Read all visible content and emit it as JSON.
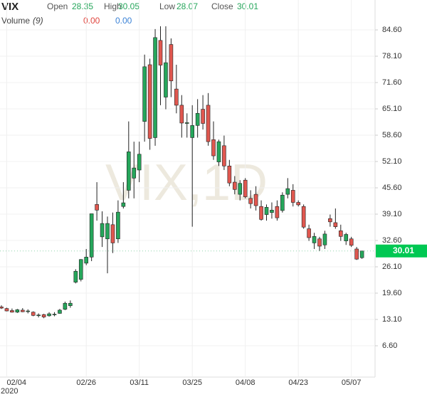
{
  "chart_data": {
    "type": "candlestick",
    "title": "VIX",
    "watermark": "VIX,1D",
    "ohlc_labels": {
      "open": "Open",
      "high": "High",
      "low": "Low",
      "close": "Close"
    },
    "indicator": {
      "name": "Volume",
      "param": "(9)",
      "readings": [
        "0.00",
        "0.00"
      ],
      "reading_colors": [
        "#e0463f",
        "#3b82d6"
      ]
    },
    "year_label": "2020",
    "categories": [
      null,
      "02/04",
      null,
      null,
      null,
      null,
      null,
      null,
      null,
      null,
      null,
      null,
      null,
      null,
      null,
      null,
      "02/26",
      null,
      null,
      null,
      null,
      null,
      null,
      null,
      null,
      null,
      "03/11",
      null,
      null,
      null,
      null,
      null,
      null,
      null,
      null,
      null,
      "03/25",
      null,
      null,
      null,
      null,
      null,
      null,
      null,
      null,
      null,
      "04/08",
      null,
      null,
      null,
      null,
      null,
      null,
      null,
      null,
      null,
      "04/23",
      null,
      null,
      null,
      null,
      null,
      null,
      null,
      null,
      null,
      "05/07",
      null,
      null
    ],
    "open": [
      16.2,
      15.8,
      15.3,
      14.9,
      15.4,
      15.1,
      14.9,
      14.2,
      14.3,
      14.0,
      14.4,
      14.6,
      15.6,
      16.5,
      22.3,
      23.0,
      27.0,
      28.5,
      41.5,
      33.5,
      33.0,
      36.5,
      33.0,
      41.0,
      45.0,
      48.0,
      50.0,
      62.0,
      76.0,
      58.0,
      82.0,
      68.0,
      81.0,
      70.0,
      66.0,
      61.5,
      58.0,
      61.0,
      65.0,
      66.0,
      57.5,
      52.0,
      56.0,
      51.0,
      47.0,
      44.0,
      47.5,
      43.0,
      44.0,
      41.0,
      39.0,
      39.5,
      41.0,
      40.0,
      44.0,
      45.0,
      42.0,
      41.0,
      35.5,
      32.0,
      33.0,
      31.5,
      38.0,
      37.0,
      35.0,
      32.5,
      33.0,
      30.5,
      28.35
    ],
    "high": [
      16.6,
      16.0,
      15.8,
      15.7,
      15.9,
      15.6,
      15.1,
      14.6,
      14.5,
      14.9,
      14.9,
      15.7,
      17.5,
      17.8,
      25.5,
      28.0,
      30.5,
      39.2,
      47.0,
      39.8,
      38.5,
      39.5,
      42.5,
      47.0,
      62.0,
      57.0,
      57.0,
      78.5,
      77.5,
      84.8,
      85.5,
      85.5,
      82.5,
      76.0,
      68.5,
      64.0,
      66.0,
      67.5,
      68.5,
      69.0,
      62.0,
      57.5,
      58.5,
      52.5,
      48.5,
      47.5,
      48.0,
      45.0,
      46.0,
      42.5,
      41.5,
      42.0,
      42.5,
      44.5,
      48.0,
      46.5,
      42.5,
      41.5,
      36.5,
      34.5,
      33.5,
      35.0,
      39.0,
      40.5,
      36.5,
      34.5,
      33.5,
      31.0,
      30.05
    ],
    "low": [
      15.7,
      15.1,
      14.8,
      14.7,
      14.9,
      14.6,
      13.9,
      13.6,
      13.4,
      13.8,
      13.9,
      14.5,
      15.4,
      16.0,
      22.0,
      22.5,
      26.5,
      27.5,
      37.5,
      31.0,
      24.5,
      29.5,
      32.0,
      40.5,
      43.0,
      43.0,
      47.0,
      57.0,
      55.0,
      56.0,
      66.0,
      65.0,
      68.0,
      64.0,
      58.0,
      58.0,
      36.0,
      58.0,
      60.0,
      56.0,
      52.5,
      51.0,
      50.0,
      46.0,
      44.0,
      42.5,
      43.0,
      40.5,
      40.0,
      37.5,
      37.5,
      38.0,
      37.5,
      39.5,
      43.0,
      41.0,
      41.0,
      35.5,
      32.5,
      30.5,
      30.0,
      30.5,
      36.0,
      35.5,
      32.5,
      31.5,
      31.0,
      27.8,
      28.07
    ],
    "close": [
      15.9,
      15.2,
      14.9,
      15.5,
      15.0,
      15.2,
      14.1,
      14.2,
      13.7,
      14.5,
      14.4,
      15.4,
      17.1,
      17.1,
      25.0,
      27.9,
      28.5,
      39.2,
      40.1,
      36.8,
      36.8,
      32.0,
      39.6,
      41.9,
      54.5,
      50.5,
      53.9,
      75.5,
      57.8,
      82.7,
      75.9,
      76.5,
      72.0,
      66.0,
      61.6,
      61.7,
      61.0,
      64.0,
      61.5,
      57.0,
      53.5,
      57.0,
      51.0,
      46.8,
      45.2,
      46.7,
      43.4,
      41.7,
      41.2,
      37.8,
      40.8,
      40.1,
      38.2,
      43.8,
      45.4,
      42.0,
      41.4,
      35.9,
      33.3,
      33.6,
      31.2,
      34.2,
      37.2,
      36.0,
      33.6,
      34.1,
      31.4,
      28.0,
      30.01
    ],
    "up_color": "#26a65b",
    "down_color": "#e0574f",
    "ylim": [
      -1.13,
      88.47
    ],
    "yticks": [
      {
        "value": 6.6,
        "label": "6.60"
      },
      {
        "value": 13.1,
        "label": "13.10"
      },
      {
        "value": 19.6,
        "label": "19.60"
      },
      {
        "value": 26.1,
        "label": "26.10"
      },
      {
        "value": 32.6,
        "label": "32.60"
      },
      {
        "value": 39.1,
        "label": "39.10"
      },
      {
        "value": 45.6,
        "label": "45.60"
      },
      {
        "value": 52.1,
        "label": "52.10"
      },
      {
        "value": 58.6,
        "label": "58.60"
      },
      {
        "value": 65.1,
        "label": "65.10"
      },
      {
        "value": 71.6,
        "label": "71.60"
      },
      {
        "value": 78.1,
        "label": "78.10"
      },
      {
        "value": 84.6,
        "label": "84.60"
      }
    ],
    "grid": true
  }
}
